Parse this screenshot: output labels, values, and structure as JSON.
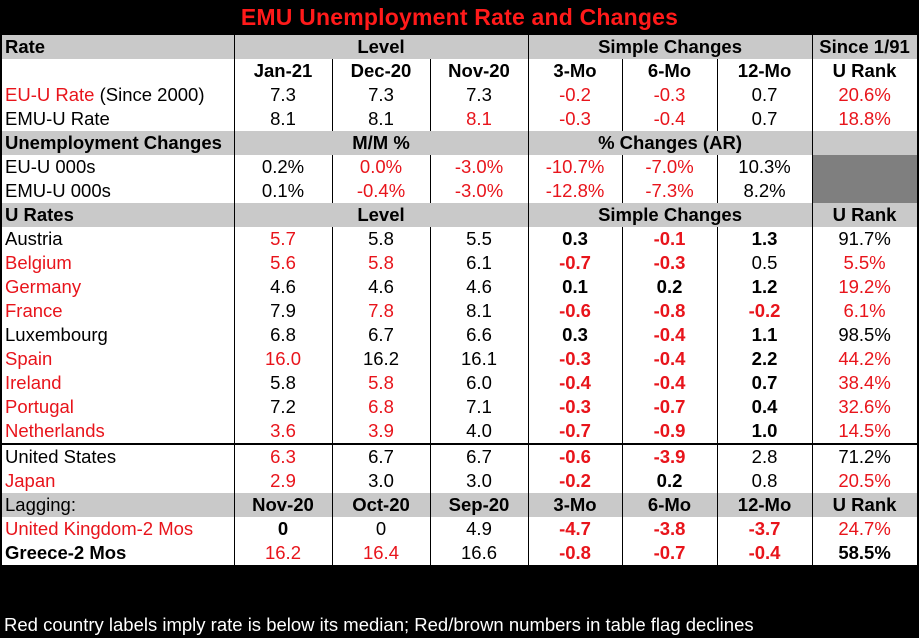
{
  "title": "EMU Unemployment Rate and Changes",
  "colors": {
    "red": "#e8141b",
    "header_gray": "#c9c9c9",
    "dark_cell": "#7f7f7f"
  },
  "header1": {
    "c0": "Rate",
    "level": "Level",
    "changes": "Simple Changes",
    "since": "Since 1/91"
  },
  "header2": {
    "c0": "",
    "m1": "Jan-21",
    "m2": "Dec-20",
    "m3": "Nov-20",
    "ch1": "3-Mo",
    "ch2": "6-Mo",
    "ch3": "12-Mo",
    "rank": "U Rank"
  },
  "summary_rows": [
    {
      "label_red": "EU-U Rate",
      "label_black": " (Since 2000)",
      "m1": "7.3",
      "m2": "7.3",
      "m3": "7.3",
      "ch1": "-0.2",
      "ch2": "-0.3",
      "ch3": "0.7",
      "rank": "20.6%"
    },
    {
      "label": "EMU-U Rate",
      "m1": "8.1",
      "m2": "8.1",
      "m3": "8.1",
      "ch1": "-0.3",
      "ch2": "-0.4",
      "ch3": "0.7",
      "rank": "18.8%"
    }
  ],
  "header3": {
    "c0": "Unemployment Changes",
    "mm": "M/M %",
    "pct": "% Changes (AR)"
  },
  "change_rows": [
    {
      "label": "EU-U 000s",
      "m1": "0.2%",
      "m2": "0.0%",
      "m3": "-3.0%",
      "ch1": "-10.7%",
      "ch2": "-7.0%",
      "ch3": "10.3%"
    },
    {
      "label": "EMU-U 000s",
      "m1": "0.1%",
      "m2": "-0.4%",
      "m3": "-3.0%",
      "ch1": "-12.8%",
      "ch2": "-7.3%",
      "ch3": "8.2%"
    }
  ],
  "header4": {
    "c0": "U Rates",
    "level": "Level",
    "changes": "Simple Changes",
    "rank": "U Rank"
  },
  "country_rows": [
    {
      "label": "Austria",
      "m1": "5.7",
      "m2": "5.8",
      "m3": "5.5",
      "ch1": "0.3",
      "ch2": "-0.1",
      "ch3": "1.3",
      "rank": "91.7%"
    },
    {
      "label": "Belgium",
      "m1": "5.6",
      "m2": "5.8",
      "m3": "6.1",
      "ch1": "-0.7",
      "ch2": "-0.3",
      "ch3": "0.5",
      "rank": "5.5%"
    },
    {
      "label": "Germany",
      "m1": "4.6",
      "m2": "4.6",
      "m3": "4.6",
      "ch1": "0.1",
      "ch2": "0.2",
      "ch3": "1.2",
      "rank": "19.2%"
    },
    {
      "label": "France",
      "m1": "7.9",
      "m2": "7.8",
      "m3": "8.1",
      "ch1": "-0.6",
      "ch2": "-0.8",
      "ch3": "-0.2",
      "rank": "6.1%"
    },
    {
      "label": "Luxembourg",
      "m1": "6.8",
      "m2": "6.7",
      "m3": "6.6",
      "ch1": "0.3",
      "ch2": "-0.4",
      "ch3": "1.1",
      "rank": "98.5%"
    },
    {
      "label": "Spain",
      "m1": "16.0",
      "m2": "16.2",
      "m3": "16.1",
      "ch1": "-0.3",
      "ch2": "-0.4",
      "ch3": "2.2",
      "rank": "44.2%"
    },
    {
      "label": "Ireland",
      "m1": "5.8",
      "m2": "5.8",
      "m3": "6.0",
      "ch1": "-0.4",
      "ch2": "-0.4",
      "ch3": "0.7",
      "rank": "38.4%"
    },
    {
      "label": "Portugal",
      "m1": "7.2",
      "m2": "6.8",
      "m3": "7.1",
      "ch1": "-0.3",
      "ch2": "-0.7",
      "ch3": "0.4",
      "rank": "32.6%"
    },
    {
      "label": "Netherlands",
      "m1": "3.6",
      "m2": "3.9",
      "m3": "4.0",
      "ch1": "-0.7",
      "ch2": "-0.9",
      "ch3": "1.0",
      "rank": "14.5%"
    }
  ],
  "other_rows": [
    {
      "label": "United States",
      "m1": "6.3",
      "m2": "6.7",
      "m3": "6.7",
      "ch1": "-0.6",
      "ch2": "-3.9",
      "ch3": "2.8",
      "rank": "71.2%"
    },
    {
      "label": "Japan",
      "m1": "2.9",
      "m2": "3.0",
      "m3": "3.0",
      "ch1": "-0.2",
      "ch2": "0.2",
      "ch3": "0.8",
      "rank": "20.5%"
    }
  ],
  "header5": {
    "c0": "Lagging:",
    "m1": "Nov-20",
    "m2": "Oct-20",
    "m3": "Sep-20",
    "ch1": "3-Mo",
    "ch2": "6-Mo",
    "ch3": "12-Mo",
    "rank": "U Rank"
  },
  "lagging_rows": [
    {
      "label": "United Kingdom-2 Mos",
      "m1": "0",
      "m2": "0",
      "m3": "4.9",
      "ch1": "-4.7",
      "ch2": "-3.8",
      "ch3": "-3.7",
      "rank": "24.7%"
    },
    {
      "label": "Greece-2 Mos",
      "m1": "16.2",
      "m2": "16.4",
      "m3": "16.6",
      "ch1": "-0.8",
      "ch2": "-0.7",
      "ch3": "-0.4",
      "rank": "58.5%"
    }
  ],
  "footer": "Red country labels imply rate is below its median; Red/brown numbers in table flag declines"
}
